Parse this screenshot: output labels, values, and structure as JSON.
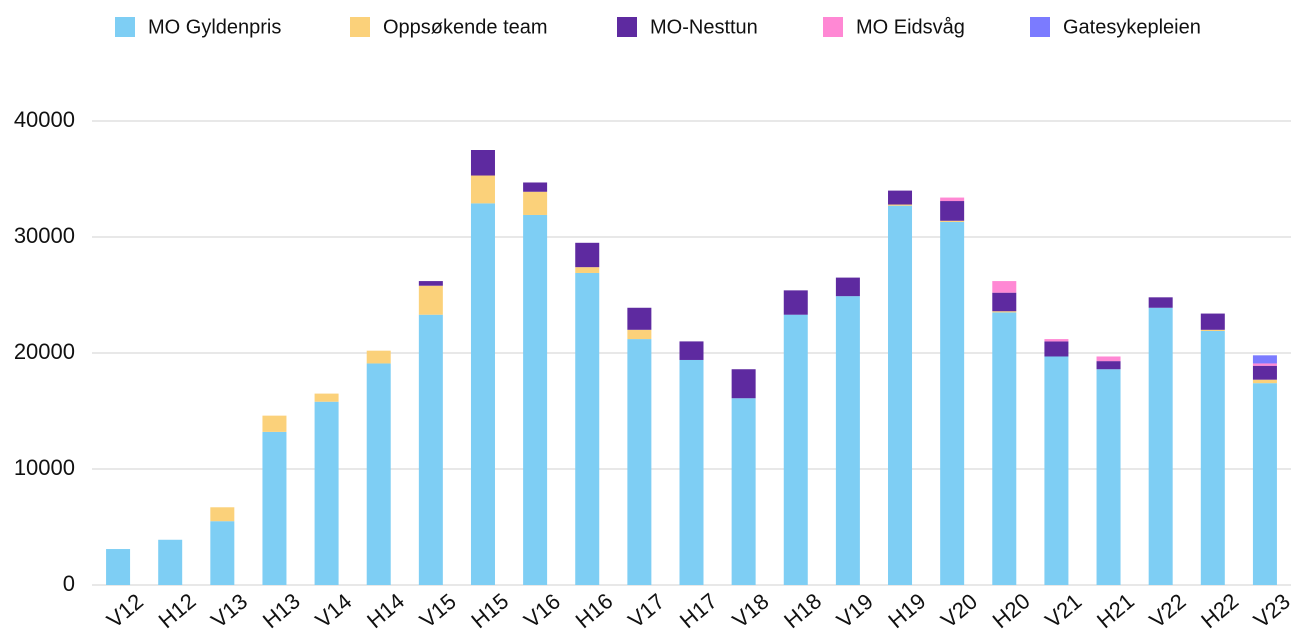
{
  "chart_data": {
    "type": "stacked_bar",
    "categories": [
      "V12",
      "H12",
      "V13",
      "H13",
      "V14",
      "H14",
      "V15",
      "H15",
      "V16",
      "H16",
      "V17",
      "H17",
      "V18",
      "H18",
      "V19",
      "H19",
      "V20",
      "H20",
      "V21",
      "H21",
      "V22",
      "H22",
      "V23"
    ],
    "series": [
      {
        "name": "MO Gyldenpris",
        "color": "#7ecef4",
        "values": [
          3100,
          3900,
          5500,
          13200,
          15800,
          19100,
          23300,
          32900,
          31900,
          26900,
          21200,
          19400,
          16100,
          23300,
          24900,
          32700,
          31300,
          23500,
          19700,
          18600,
          23900,
          21900,
          17400
        ]
      },
      {
        "name": "Oppsøkende team",
        "color": "#fbd17a",
        "values": [
          0,
          0,
          1200,
          1400,
          700,
          1100,
          2500,
          2400,
          2000,
          500,
          800,
          0,
          0,
          0,
          0,
          100,
          100,
          100,
          0,
          0,
          0,
          100,
          300
        ]
      },
      {
        "name": "MO-Nesttun",
        "color": "#5e2aa0",
        "values": [
          0,
          0,
          0,
          0,
          0,
          0,
          400,
          2200,
          800,
          2100,
          1900,
          1600,
          2500,
          2100,
          1600,
          1200,
          1700,
          1600,
          1300,
          700,
          900,
          1400,
          1200
        ]
      },
      {
        "name": "MO Eidsvåg",
        "color": "#ff88d4",
        "values": [
          0,
          0,
          0,
          0,
          0,
          0,
          0,
          0,
          0,
          0,
          0,
          0,
          0,
          0,
          0,
          0,
          300,
          1000,
          200,
          400,
          0,
          0,
          200
        ]
      },
      {
        "name": "Gatesykepleien",
        "color": "#7b7bff",
        "values": [
          0,
          0,
          0,
          0,
          0,
          0,
          0,
          0,
          0,
          0,
          0,
          0,
          0,
          0,
          0,
          0,
          0,
          0,
          0,
          0,
          0,
          0,
          700
        ]
      }
    ],
    "ylim": [
      0,
      40000
    ],
    "yticks": [
      0,
      10000,
      20000,
      30000,
      40000
    ],
    "grid": true
  }
}
